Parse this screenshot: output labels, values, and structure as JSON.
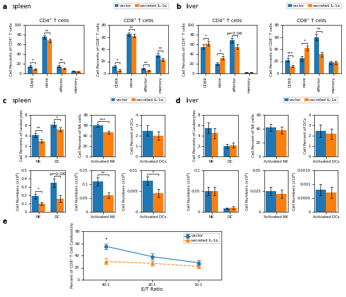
{
  "chart_data": [
    {
      "type": "bar",
      "annotations": [
        "a",
        "spleen"
      ],
      "title": "CD4⁺ T cells",
      "ylabel": "Cell Percents of CD4⁺ T cells",
      "categories": [
        "CD69",
        "naive",
        "effector",
        "memory"
      ],
      "series": [
        {
          "name": "vector",
          "values": [
            15,
            75,
            15,
            5
          ],
          "errors": [
            2,
            3,
            2,
            1
          ]
        },
        {
          "name": "secreted IL-1α",
          "values": [
            8,
            68,
            10,
            4
          ],
          "errors": [
            1.5,
            4,
            1.5,
            1
          ]
        }
      ],
      "significance": [
        "*",
        "**",
        "**",
        null
      ],
      "ylim": [
        0,
        100
      ],
      "yticks": [
        0,
        20,
        40,
        60,
        80,
        100
      ],
      "legend": false
    },
    {
      "type": "bar",
      "title": "CD8⁺ T cells",
      "ylabel": "Cell Percents of CD8⁺ T cells",
      "categories": [
        "CD69",
        "naive",
        "effector",
        "memory"
      ],
      "series": [
        {
          "name": "vector",
          "values": [
            12,
            65,
            8,
            30
          ],
          "errors": [
            2,
            3,
            1.5,
            3
          ]
        },
        {
          "name": "secreted IL-1α",
          "values": [
            5,
            62,
            5,
            23
          ],
          "errors": [
            1.5,
            3,
            1,
            2
          ]
        }
      ],
      "significance": [
        "*",
        "**",
        "**",
        "**"
      ],
      "ylim": [
        0,
        80
      ],
      "yticks": [
        0,
        20,
        40,
        60,
        80
      ],
      "legend": "upper right"
    },
    {
      "type": "bar",
      "annotations": [
        "b",
        "liver"
      ],
      "title": "CD4⁺ T cells",
      "ylabel": "Cell Percents of CD4⁺ T cells",
      "categories": [
        "CD69",
        "naive",
        "effector",
        "memory"
      ],
      "series": [
        {
          "name": "vector",
          "values": [
            55,
            20,
            68,
            2
          ],
          "errors": [
            5,
            3,
            5,
            0.5
          ]
        },
        {
          "name": "secreted IL-1α",
          "values": [
            62,
            32,
            55,
            2
          ],
          "errors": [
            5,
            4,
            5,
            0.5
          ]
        }
      ],
      "significance": [
        "*",
        "*",
        "p=0.06",
        null
      ],
      "ylim": [
        0,
        100
      ],
      "yticks": [
        0,
        20,
        40,
        60,
        80,
        100
      ],
      "legend": false
    },
    {
      "type": "bar",
      "title": "CD8⁺ T cells",
      "ylabel": "Cell Percents of CD8⁺ T cells",
      "categories": [
        "CD69",
        "naive",
        "effector",
        "memory"
      ],
      "series": [
        {
          "name": "vector",
          "values": [
            22,
            25,
            60,
            18
          ],
          "errors": [
            3,
            4,
            5,
            3
          ]
        },
        {
          "name": "secreted IL-1α",
          "values": [
            12,
            42,
            32,
            18
          ],
          "errors": [
            2,
            4,
            4,
            3
          ]
        }
      ],
      "significance": [
        "***",
        "*",
        "**",
        null
      ],
      "ylim": [
        0,
        80
      ],
      "yticks": [
        0,
        20,
        40,
        60,
        80
      ],
      "legend": "upper right"
    },
    {
      "type": "bar",
      "annotations": [
        "c",
        "spleen"
      ],
      "ylabel": "Cell Percents of Leukocytes",
      "categories": [
        "NK",
        "DC"
      ],
      "series": [
        {
          "name": "vector",
          "values": [
            4.2,
            6.2
          ],
          "errors": [
            0.4,
            0.5
          ]
        },
        {
          "name": "secreted IL-1α",
          "values": [
            3.0,
            5.2
          ],
          "errors": [
            0.3,
            0.4
          ]
        }
      ],
      "significance": [
        "**",
        "*"
      ],
      "ylim": [
        0,
        8
      ],
      "yticks": [
        0,
        2,
        4,
        6,
        8
      ],
      "legend": "upper right"
    },
    {
      "type": "bar",
      "ylabel": "Cell Percent of NK cells",
      "categories": [
        "Activated NK"
      ],
      "series": [
        {
          "name": "vector",
          "values": [
            60
          ],
          "errors": [
            3
          ]
        },
        {
          "name": "secreted IL-1α",
          "values": [
            47
          ],
          "errors": [
            3
          ]
        }
      ],
      "significance": [
        "***"
      ],
      "ylim": [
        0,
        80
      ],
      "yticks": [
        0,
        20,
        40,
        60,
        80
      ],
      "legend": false
    },
    {
      "type": "bar",
      "ylabel": "Cell Percent of DCs",
      "categories": [
        "Activated DCs"
      ],
      "series": [
        {
          "name": "vector",
          "values": [
            2.5
          ],
          "errors": [
            0.5
          ]
        },
        {
          "name": "secreted IL-1α",
          "values": [
            2.0
          ],
          "errors": [
            0.4
          ]
        }
      ],
      "significance": [
        null
      ],
      "ylim": [
        0,
        4
      ],
      "yticks": [
        0,
        1,
        2,
        3,
        4
      ],
      "legend": false
    },
    {
      "type": "bar",
      "ylabel": "Cell Numbers (x10⁶)",
      "categories": [
        "NK",
        "DC"
      ],
      "series": [
        {
          "name": "vector",
          "values": [
            0.19,
            0.35
          ],
          "errors": [
            0.03,
            0.05
          ]
        },
        {
          "name": "secreted IL-1α",
          "values": [
            0.1,
            0.16
          ],
          "errors": [
            0.02,
            0.04
          ]
        }
      ],
      "significance": [
        "*",
        "p=0.08"
      ],
      "ylim": [
        0,
        0.5
      ],
      "yticks": [
        0,
        0.1,
        0.2,
        0.3,
        0.4,
        0.5
      ],
      "legend": false
    },
    {
      "type": "bar",
      "ylabel": "Cell Numbers (x10⁶)",
      "categories": [
        "Activated NK"
      ],
      "series": [
        {
          "name": "vector",
          "values": [
            0.11
          ],
          "errors": [
            0.015
          ]
        },
        {
          "name": "secreted IL-1α",
          "values": [
            0.06
          ],
          "errors": [
            0.01
          ]
        }
      ],
      "significance": [
        "**"
      ],
      "ylim": [
        0,
        0.15
      ],
      "yticks": [
        0,
        0.05,
        0.1,
        0.15
      ],
      "legend": false
    },
    {
      "type": "bar",
      "ylabel": "Cell Numbers (x10⁶)",
      "categories": [
        "Activated DCs"
      ],
      "series": [
        {
          "name": "vector",
          "values": [
            0.0075
          ],
          "errors": [
            0.001
          ]
        },
        {
          "name": "secreted IL-1α",
          "values": [
            0.0045
          ],
          "errors": [
            0.001
          ]
        }
      ],
      "significance": [
        "*"
      ],
      "ylim": [
        0,
        0.01
      ],
      "yticks": [
        0,
        0.005,
        0.01
      ],
      "legend": false
    },
    {
      "type": "bar",
      "annotations": [
        "d",
        "liver"
      ],
      "ylabel": "Cell Percents of Leukocytes",
      "categories": [
        "NK",
        "DC"
      ],
      "series": [
        {
          "name": "vector",
          "values": [
            5.5,
            2.0
          ],
          "errors": [
            1.0,
            0.4
          ]
        },
        {
          "name": "secreted IL-1α",
          "values": [
            4.5,
            2.2
          ],
          "errors": [
            1.0,
            0.5
          ]
        }
      ],
      "significance": [
        null,
        null
      ],
      "ylim": [
        0,
        8
      ],
      "yticks": [
        0,
        2,
        4,
        6,
        8
      ],
      "legend": "upper right"
    },
    {
      "type": "bar",
      "ylabel": "Cell Percent of NK cells",
      "categories": [
        "Activated NK"
      ],
      "series": [
        {
          "name": "vector",
          "values": [
            42
          ],
          "errors": [
            5
          ]
        },
        {
          "name": "secreted IL-1α",
          "values": [
            38
          ],
          "errors": [
            5
          ]
        }
      ],
      "significance": [
        null
      ],
      "ylim": [
        0,
        60
      ],
      "yticks": [
        0,
        20,
        40,
        60
      ],
      "legend": false
    },
    {
      "type": "bar",
      "ylabel": "Cell Percent of DCs",
      "categories": [
        "Activated DCs"
      ],
      "series": [
        {
          "name": "vector",
          "values": [
            2.5
          ],
          "errors": [
            0.6
          ]
        },
        {
          "name": "secreted IL-1α",
          "values": [
            2.2
          ],
          "errors": [
            0.5
          ]
        }
      ],
      "significance": [
        null
      ],
      "ylim": [
        0,
        4
      ],
      "yticks": [
        0,
        1,
        2,
        3,
        4
      ],
      "legend": false
    },
    {
      "type": "bar",
      "ylabel": "Cell Numbers (x10⁶)",
      "categories": [
        "NK",
        "DC"
      ],
      "series": [
        {
          "name": "vector",
          "values": [
            0.05,
            0.008
          ],
          "errors": [
            0.01,
            0.002
          ]
        },
        {
          "name": "secreted IL-1α",
          "values": [
            0.05,
            0.01
          ],
          "errors": [
            0.01,
            0.003
          ]
        }
      ],
      "significance": [
        null,
        null
      ],
      "ylim": [
        0,
        0.1
      ],
      "yticks": [
        0,
        0.05,
        0.1
      ],
      "legend": false
    },
    {
      "type": "bar",
      "ylabel": "Cell Numbers (x10⁶)",
      "categories": [
        "Activated NK"
      ],
      "series": [
        {
          "name": "vector",
          "values": [
            0.025
          ],
          "errors": [
            0.005
          ]
        },
        {
          "name": "secreted IL-1α",
          "values": [
            0.022
          ],
          "errors": [
            0.005
          ]
        }
      ],
      "significance": [
        null
      ],
      "ylim": [
        0,
        0.05
      ],
      "yticks": [
        0,
        0.025,
        0.05
      ],
      "legend": false
    },
    {
      "type": "bar",
      "ylabel": "Cell Numbers (x10⁶)",
      "categories": [
        "Activated DCs"
      ],
      "series": [
        {
          "name": "vector",
          "values": [
            0.0008
          ],
          "errors": [
            0.0002
          ]
        },
        {
          "name": "secreted IL-1α",
          "values": [
            0.0007
          ],
          "errors": [
            0.0002
          ]
        }
      ],
      "significance": [
        null
      ],
      "ylim": [
        0,
        0.0015
      ],
      "yticks": [
        0,
        0.0005,
        0.001,
        0.0015
      ],
      "legend": false
    },
    {
      "type": "line",
      "annotations": [
        "e"
      ],
      "xlabel": "E/T Ratio",
      "ylabel": "Percent of CD8⁺ T Cell Cytotoxicity",
      "categories": [
        "40:1",
        "20:1",
        "10:1"
      ],
      "series": [
        {
          "name": "vector",
          "values": [
            55,
            38,
            28
          ],
          "errors": [
            5,
            5,
            4
          ],
          "marker": "o",
          "line_style": "solid"
        },
        {
          "name": "secreted IL-1α",
          "values": [
            30,
            27,
            22
          ],
          "errors": [
            5,
            4,
            3
          ],
          "marker": "^",
          "line_style": "dashed"
        }
      ],
      "significance": [
        "*",
        null,
        null
      ],
      "ylim": [
        0,
        80
      ],
      "yticks": [
        0,
        20,
        40,
        60,
        80
      ],
      "legend": "upper right"
    }
  ]
}
